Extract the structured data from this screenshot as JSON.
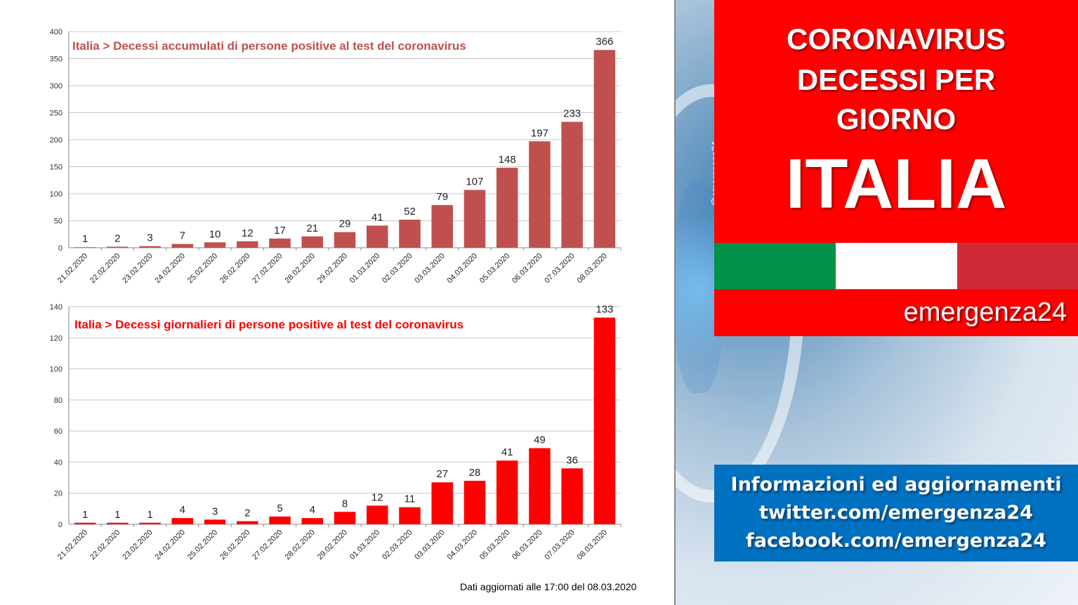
{
  "chart_data": [
    {
      "type": "bar",
      "title": "Italia > Decessi accumulati di persone positive al test del coronavirus",
      "categories": [
        "21.02.2020",
        "22.02.2020",
        "23.02.2020",
        "24.02.2020",
        "25.02.2020",
        "26.02.2020",
        "27.02.2020",
        "28.02.2020",
        "29.02.2020",
        "01.03.2020",
        "02.03.2020",
        "03.03.2020",
        "04.03.2020",
        "05.03.2020",
        "06.03.2020",
        "07.03.2020",
        "08.03.2020"
      ],
      "values": [
        1,
        2,
        3,
        7,
        10,
        12,
        17,
        21,
        29,
        41,
        52,
        79,
        107,
        148,
        197,
        233,
        366
      ],
      "ylim": [
        0,
        400
      ],
      "yticks": [
        0,
        50,
        100,
        150,
        200,
        250,
        300,
        350,
        400
      ],
      "grid": true,
      "bar_color": "#c0504d",
      "title_color": "#c0504d"
    },
    {
      "type": "bar",
      "title": "Italia > Decessi giornalieri di persone positive al test del coronavirus",
      "categories": [
        "21.02.2020",
        "22.02.2020",
        "23.02.2020",
        "24.02.2020",
        "25.02.2020",
        "26.02.2020",
        "27.02.2020",
        "28.02.2020",
        "29.02.2020",
        "01.03.2020",
        "02.03.2020",
        "03.03.2020",
        "04.03.2020",
        "05.03.2020",
        "06.03.2020",
        "07.03.2020",
        "08.03.2020"
      ],
      "values": [
        1,
        1,
        1,
        4,
        3,
        2,
        5,
        4,
        8,
        12,
        11,
        27,
        28,
        41,
        49,
        36,
        133
      ],
      "ylim": [
        0,
        140
      ],
      "yticks": [
        0,
        20,
        40,
        60,
        80,
        100,
        120,
        140
      ],
      "grid": true,
      "bar_color": "#ff0000",
      "title_color": "#ff0000"
    }
  ],
  "footnote": "Dati aggiornati alle 17:00 del 08.03.2020",
  "sidebar": {
    "watermark": "@emergenza24",
    "title_line1": "CORONAVIRUS",
    "title_line2": "DECESSI PER",
    "title_line3": "GIORNO",
    "country": "ITALIA",
    "brand": "emergenza24",
    "info_line1": "Informazioni ed aggiornamenti",
    "info_line2": "twitter.com/emergenza24",
    "info_line3": "facebook.com/emergenza24",
    "flag_colors": [
      "#009246",
      "#ffffff",
      "#ce2b37"
    ],
    "accent_red": "#ff0000",
    "accent_blue": "#0070c0"
  }
}
